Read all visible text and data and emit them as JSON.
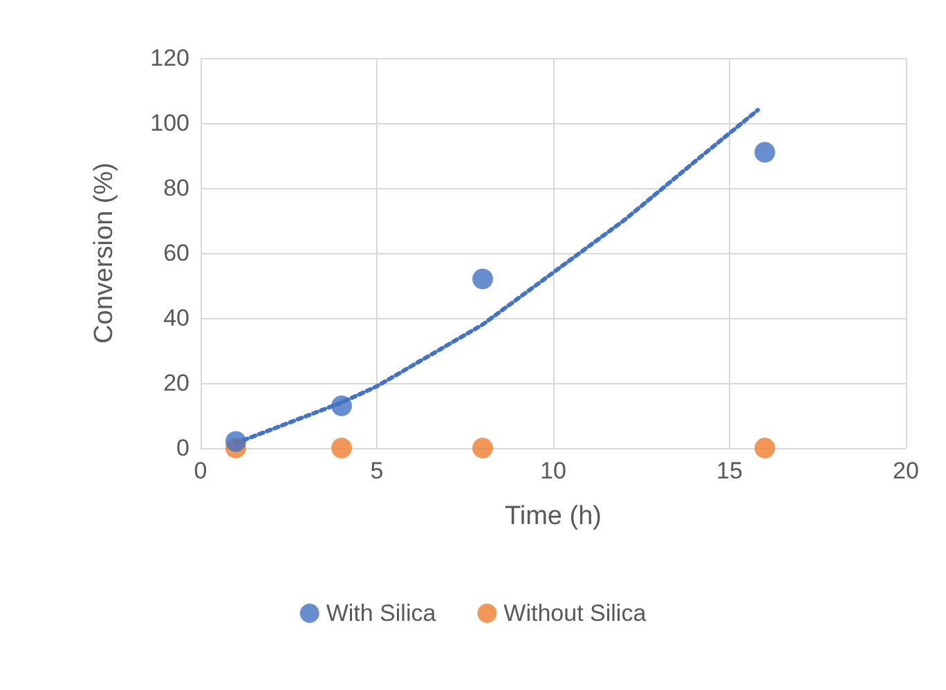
{
  "chart_data": {
    "type": "scatter",
    "xlabel": "Time (h)",
    "ylabel": "Conversion (%)",
    "xlim": [
      0,
      20
    ],
    "xticks": [
      0,
      5,
      10,
      15,
      20
    ],
    "ylim": [
      0,
      120
    ],
    "yticks": [
      0,
      20,
      40,
      60,
      80,
      100,
      120
    ],
    "grid": true,
    "legend": "bottom",
    "marker": "circle",
    "series": [
      {
        "name": "With Silica",
        "color": "#4472c4",
        "x": [
          1,
          4,
          8,
          16
        ],
        "values": [
          2,
          13,
          52,
          91
        ]
      },
      {
        "name": "Without Silica",
        "color": "#ed7d31",
        "x": [
          1,
          4,
          8,
          16
        ],
        "values": [
          0,
          0,
          0,
          0
        ]
      },
      {
        "type": "line",
        "color": "#4472c4",
        "line_style": "dotted",
        "marker": "none",
        "x": [
          1,
          4,
          5,
          8,
          10,
          12,
          14,
          15.8
        ],
        "values": [
          1.5,
          14,
          19,
          38,
          54,
          70,
          88,
          104
        ]
      }
    ]
  }
}
